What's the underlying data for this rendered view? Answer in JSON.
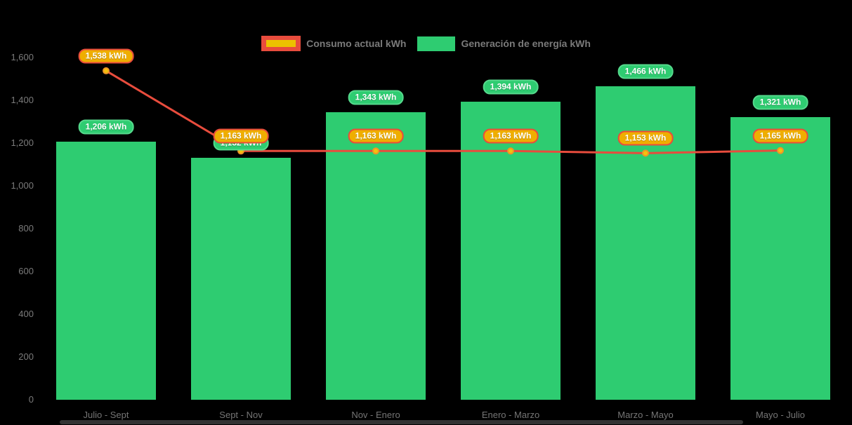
{
  "chart_data": {
    "type": "bar",
    "subtype": "bar-line-combo",
    "title": "",
    "xlabel": "",
    "ylabel": "",
    "categories": [
      "Julio - Sept",
      "Sept - Nov",
      "Nov - Enero",
      "Enero - Marzo",
      "Marzo - Mayo",
      "Mayo - Julio"
    ],
    "series": [
      {
        "name": "Consumo actual kWh",
        "type": "line",
        "values": [
          1538,
          1163,
          1163,
          1163,
          1153,
          1165
        ],
        "labels": [
          "1,538 kWh",
          "1,163 kWh",
          "1,163 kWh",
          "1,163 kWh",
          "1,153 kWh",
          "1,165 kWh"
        ],
        "color": "#E84C3D",
        "marker_fill": "#F4C20D",
        "marker_stroke": "#EE9626",
        "label_bg": "#EFAE00",
        "label_border": "#E84C3D"
      },
      {
        "name": "Generación de energía kWh",
        "type": "bar",
        "values": [
          1206,
          1132,
          1343,
          1394,
          1466,
          1321
        ],
        "labels": [
          "1,206 kWh",
          "1,132 kWh",
          "1,343 kWh",
          "1,394 kWh",
          "1,466 kWh",
          "1,321 kWh"
        ],
        "color": "#2ECC71",
        "label_bg": "#2ECC71",
        "label_border": "#55D98C"
      }
    ],
    "value_suffix": " kWh",
    "ylim": [
      0,
      1600
    ],
    "y_ticks": [
      {
        "value": 1600,
        "label": "1,600"
      },
      {
        "value": 1400,
        "label": "1,400"
      },
      {
        "value": 1200,
        "label": "1,200"
      },
      {
        "value": 1000,
        "label": "1,000"
      },
      {
        "value": 800,
        "label": "800"
      },
      {
        "value": 600,
        "label": "600"
      },
      {
        "value": 400,
        "label": "400"
      },
      {
        "value": 200,
        "label": "200"
      },
      {
        "value": 0,
        "label": "0"
      }
    ],
    "grid": false,
    "legend_position": "top",
    "colors": {
      "background": "#000000",
      "axis_text": "#7B7B7B",
      "legend_text": "#7A7A7A",
      "bar_green": "#2ECC71",
      "line_red": "#E84C3D",
      "pill_gold": "#EFAE00",
      "scrollbar": "#333333"
    }
  }
}
